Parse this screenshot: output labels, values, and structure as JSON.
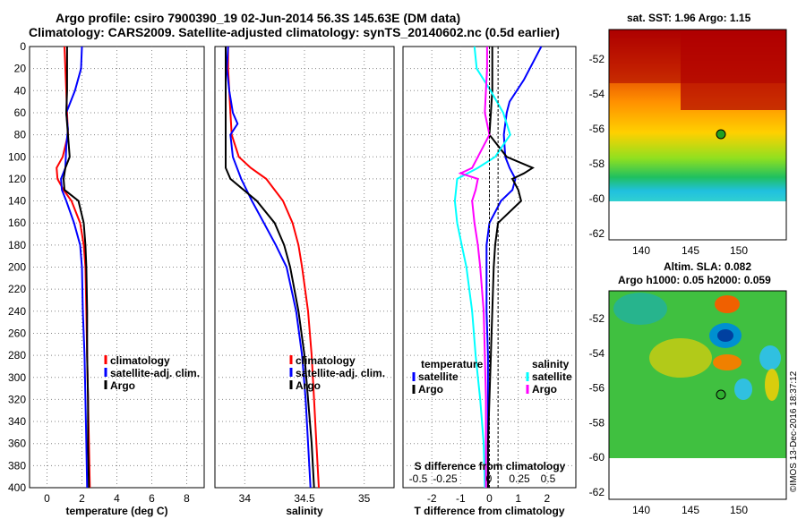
{
  "header": {
    "title_line1": "Argo profile: csiro 7900390_19 02-Jun-2014 56.3S 145.63E (DM data)",
    "title_line2": "Climatology: CARS2009. Satellite-adjusted climatology: synTS_20140602.nc (0.5d earlier)"
  },
  "map_sst": {
    "title": "sat. SST: 1.96 Argo: 1.15",
    "xticks": [
      "140",
      "145",
      "150"
    ],
    "yticks": [
      "-52",
      "-54",
      "-56",
      "-58",
      "-60",
      "-62"
    ]
  },
  "map_sla": {
    "title1": "Altim. SLA: 0.082",
    "title2": "Argo h1000: 0.05 h2000: 0.059",
    "xticks": [
      "140",
      "145",
      "150"
    ],
    "yticks": [
      "-52",
      "-54",
      "-56",
      "-58",
      "-60",
      "-62"
    ]
  },
  "credit": "©IMOS 13-Dec-2016 18:37:12",
  "colors": {
    "climatology": "#ff0000",
    "satellite": "#0000ff",
    "argo": "#000000",
    "s_satellite": "#00ffff",
    "s_argo": "#ff00ff"
  },
  "chart_data": [
    {
      "type": "line",
      "xlabel": "temperature (deg C)",
      "ylabel": "depth",
      "xlim": [
        -1,
        9
      ],
      "ylim": [
        400,
        0
      ],
      "xticks": [
        "0",
        "2",
        "4",
        "6",
        "8"
      ],
      "yticks": [
        "0",
        "20",
        "40",
        "60",
        "80",
        "100",
        "120",
        "140",
        "160",
        "180",
        "200",
        "220",
        "240",
        "260",
        "280",
        "300",
        "320",
        "340",
        "360",
        "380",
        "400"
      ],
      "legend": [
        "climatology",
        "satellite-adj. clim.",
        "Argo"
      ],
      "series": [
        {
          "name": "climatology",
          "depth": [
            0,
            20,
            40,
            60,
            80,
            100,
            110,
            120,
            130,
            140,
            160,
            180,
            200,
            240,
            280,
            320,
            360,
            400
          ],
          "values": [
            1.0,
            1.05,
            1.1,
            1.15,
            1.2,
            0.9,
            0.55,
            0.6,
            0.95,
            1.4,
            1.9,
            2.1,
            2.2,
            2.25,
            2.3,
            2.35,
            2.4,
            2.45
          ]
        },
        {
          "name": "satellite-adj. clim.",
          "depth": [
            0,
            20,
            40,
            60,
            75,
            90,
            110,
            120,
            130,
            140,
            160,
            180,
            200,
            240,
            280,
            320,
            360,
            400
          ],
          "values": [
            2.0,
            1.95,
            1.6,
            1.1,
            1.2,
            1.1,
            1.05,
            0.8,
            0.85,
            1.1,
            1.55,
            1.9,
            2.0,
            2.05,
            2.15,
            2.2,
            2.25,
            2.3
          ]
        },
        {
          "name": "Argo",
          "depth": [
            0,
            20,
            40,
            60,
            80,
            100,
            110,
            120,
            130,
            140,
            160,
            180,
            200,
            240,
            280,
            320,
            360,
            400
          ],
          "values": [
            1.15,
            1.15,
            1.15,
            1.1,
            1.2,
            1.3,
            1.05,
            0.95,
            1.0,
            1.8,
            2.1,
            2.2,
            2.25,
            2.3,
            2.3,
            2.35,
            2.35,
            2.4
          ]
        }
      ]
    },
    {
      "type": "line",
      "xlabel": "salinity",
      "xlim": [
        33.75,
        35.25
      ],
      "ylim": [
        400,
        0
      ],
      "xticks": [
        "34",
        "34.5",
        "35"
      ],
      "legend": [
        "climatology",
        "satellite-adj. clim.",
        "Argo"
      ],
      "series": [
        {
          "name": "climatology",
          "depth": [
            0,
            20,
            40,
            60,
            80,
            100,
            110,
            120,
            140,
            160,
            180,
            200,
            240,
            280,
            320,
            360,
            400
          ],
          "values": [
            33.86,
            33.86,
            33.87,
            33.88,
            33.89,
            33.95,
            34.05,
            34.18,
            34.32,
            34.4,
            34.45,
            34.48,
            34.53,
            34.56,
            34.58,
            34.6,
            34.62
          ]
        },
        {
          "name": "satellite-adj. clim.",
          "depth": [
            0,
            20,
            40,
            60,
            70,
            80,
            100,
            120,
            140,
            160,
            180,
            200,
            240,
            280,
            320,
            360,
            400
          ],
          "values": [
            33.86,
            33.85,
            33.87,
            33.9,
            33.94,
            33.88,
            33.9,
            33.97,
            34.06,
            34.16,
            34.26,
            34.35,
            34.43,
            34.48,
            34.51,
            34.53,
            34.55
          ]
        },
        {
          "name": "Argo",
          "depth": [
            0,
            20,
            40,
            60,
            80,
            100,
            110,
            120,
            140,
            160,
            180,
            200,
            240,
            280,
            320,
            360,
            400
          ],
          "values": [
            33.84,
            33.84,
            33.84,
            33.84,
            33.84,
            33.84,
            33.84,
            33.88,
            34.1,
            34.25,
            34.33,
            34.38,
            34.45,
            34.5,
            34.53,
            34.56,
            34.58
          ]
        }
      ]
    },
    {
      "type": "line",
      "xlabel": "T difference from climatology",
      "xlabel2": "S difference from climatology",
      "xlim": [
        -3,
        3
      ],
      "ylim": [
        400,
        0
      ],
      "xticks": [
        "-2",
        "-1",
        "0",
        "1",
        "2"
      ],
      "xticks_s": [
        "-0.5",
        "-0.25",
        "0",
        "0.25",
        "0.5"
      ],
      "legend_t_title": "temperature",
      "legend_s_title": "salinity",
      "legend": [
        "satellite",
        "Argo",
        "satellite",
        "Argo"
      ],
      "series": [
        {
          "name": "T satellite",
          "depth": [
            0,
            10,
            30,
            50,
            60,
            80,
            100,
            110,
            120,
            130,
            140,
            160,
            180,
            200,
            240,
            280,
            320,
            360,
            400
          ],
          "values": [
            1.8,
            1.6,
            1.2,
            0.7,
            0.6,
            0.5,
            0.55,
            0.7,
            0.9,
            0.8,
            0.4,
            0.0,
            -0.1,
            -0.1,
            -0.1,
            -0.05,
            -0.05,
            -0.05,
            -0.05
          ]
        },
        {
          "name": "T Argo",
          "depth": [
            0,
            20,
            40,
            60,
            80,
            100,
            110,
            115,
            120,
            130,
            140,
            160,
            180,
            200,
            240,
            280,
            320,
            360,
            400
          ],
          "values": [
            0.1,
            0.1,
            0.1,
            0.05,
            0.0,
            0.6,
            1.5,
            1.2,
            0.8,
            1.0,
            1.1,
            0.3,
            0.2,
            0.15,
            0.1,
            0.05,
            0.0,
            -0.05,
            -0.05
          ]
        },
        {
          "name": "S satellite",
          "depth": [
            0,
            20,
            40,
            60,
            80,
            100,
            110,
            120,
            140,
            160,
            180,
            200,
            240,
            280,
            320,
            360,
            400
          ],
          "values": [
            -0.13,
            -0.11,
            0.01,
            0.12,
            0.18,
            0.05,
            -0.1,
            -0.28,
            -0.3,
            -0.28,
            -0.24,
            -0.2,
            -0.15,
            -0.12,
            -0.08,
            -0.05,
            -0.04
          ]
        },
        {
          "name": "S Argo",
          "depth": [
            0,
            20,
            40,
            60,
            80,
            100,
            110,
            115,
            120,
            130,
            140,
            160,
            180,
            200,
            240,
            280,
            320,
            360,
            400
          ],
          "values": [
            -0.02,
            -0.02,
            -0.03,
            -0.04,
            0.0,
            -0.1,
            -0.15,
            -0.25,
            -0.1,
            -0.12,
            -0.15,
            -0.13,
            -0.1,
            -0.08,
            -0.05,
            -0.04,
            -0.03,
            -0.03,
            -0.03
          ]
        }
      ]
    }
  ]
}
